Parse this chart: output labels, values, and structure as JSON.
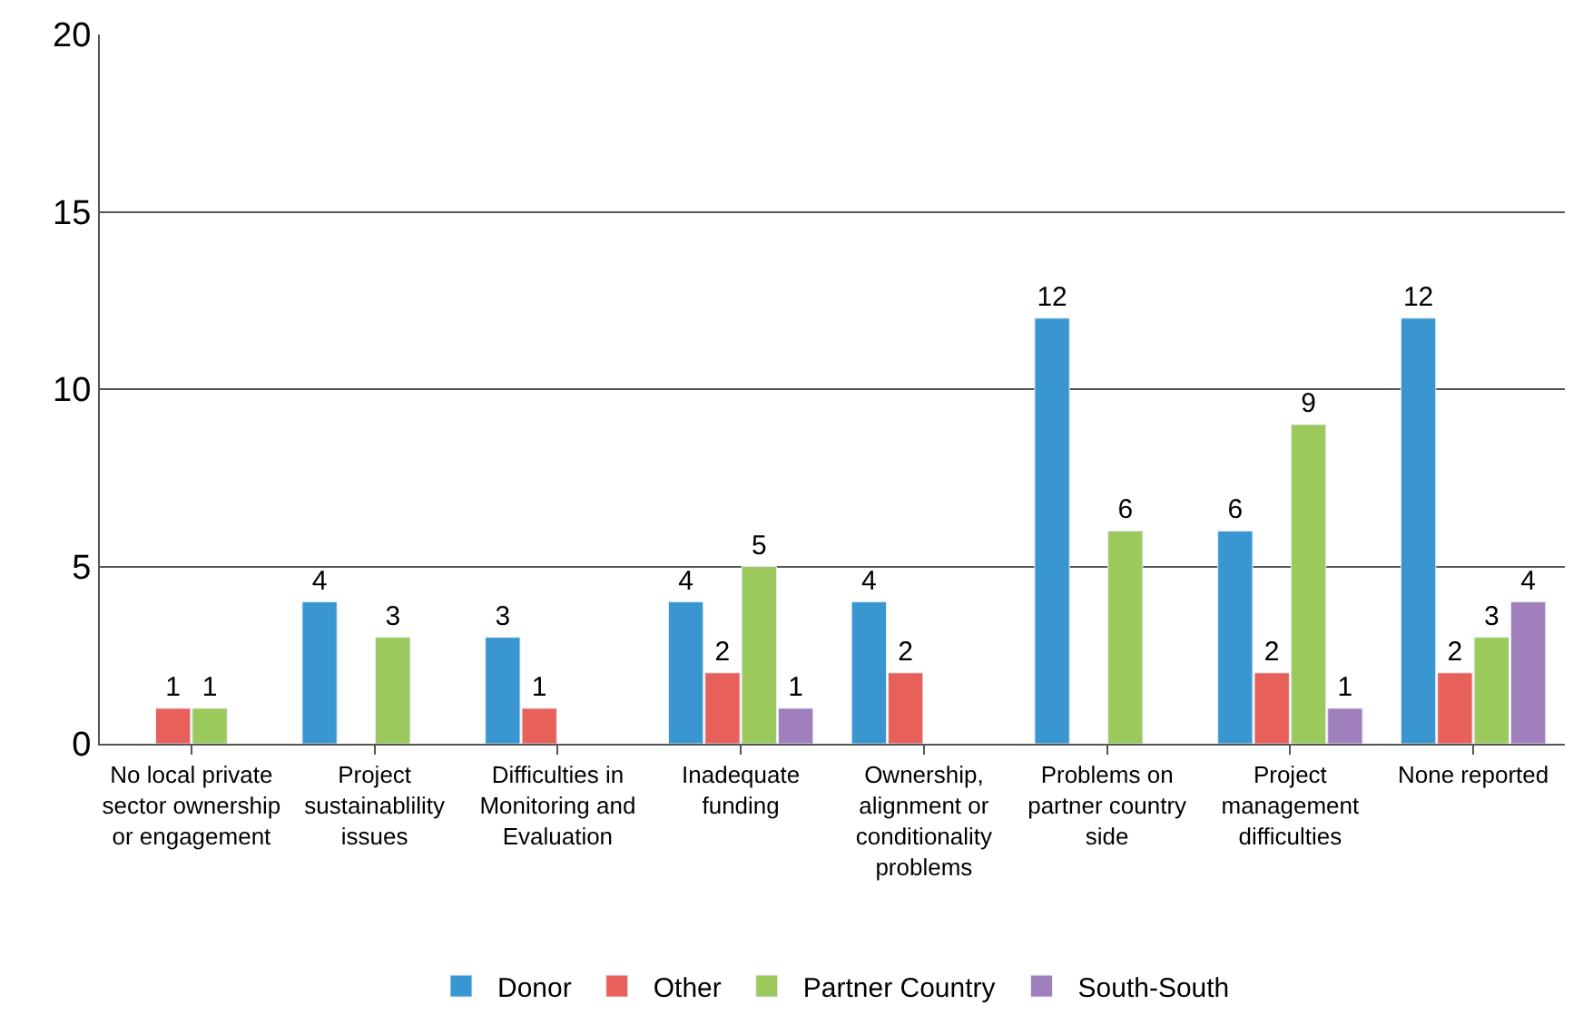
{
  "chart_data": {
    "type": "bar",
    "categories": [
      "No local private sector ownership or engagement",
      "Project sustainablility issues",
      "Difficulties in Monitoring and Evaluation",
      "Inadequate funding",
      "Ownership, alignment or conditionality problems",
      "Problems on partner country side",
      "Project management difficulties",
      "None reported"
    ],
    "series": [
      {
        "name": "Donor",
        "color": "#3a96d0",
        "values": [
          null,
          4,
          3,
          4,
          4,
          12,
          6,
          12
        ]
      },
      {
        "name": "Other",
        "color": "#e8605a",
        "values": [
          1,
          null,
          1,
          2,
          2,
          null,
          2,
          2
        ]
      },
      {
        "name": "Partner Country",
        "color": "#9bc95b",
        "values": [
          1,
          3,
          null,
          5,
          null,
          6,
          9,
          3
        ]
      },
      {
        "name": "South-South",
        "color": "#a07fbd",
        "values": [
          null,
          null,
          null,
          1,
          null,
          null,
          1,
          4
        ]
      }
    ],
    "ylim": [
      0,
      20
    ],
    "yticks": [
      0,
      5,
      10,
      15,
      20
    ],
    "grid": "y",
    "legend": "bottom",
    "data_labels": true
  }
}
